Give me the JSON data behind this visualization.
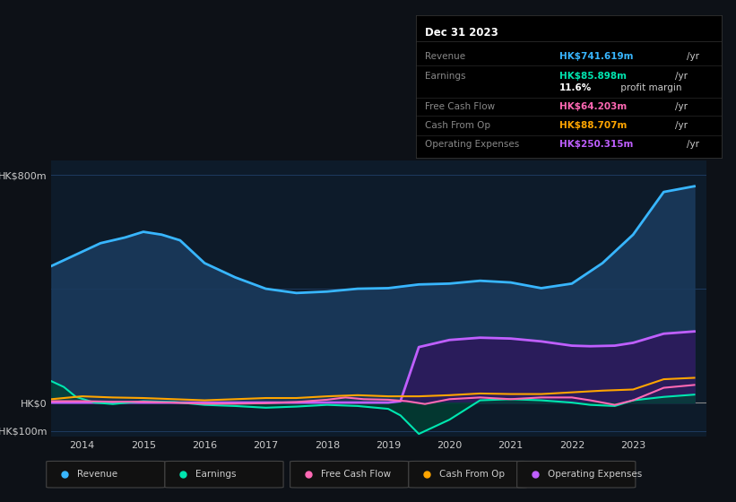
{
  "background_color": "#0d1117",
  "chart_bg": "#0d1b2a",
  "title_box": {
    "title": "Dec 31 2023",
    "rows": [
      {
        "label": "Revenue",
        "value": "HK$741.619m",
        "unit": "/yr",
        "color": "#38b6ff"
      },
      {
        "label": "Earnings",
        "value": "HK$85.898m",
        "unit": "/yr",
        "color": "#00e5b0"
      },
      {
        "label": "",
        "value": "11.6%",
        "unit": " profit margin",
        "color": "#ffffff"
      },
      {
        "label": "Free Cash Flow",
        "value": "HK$64.203m",
        "unit": "/yr",
        "color": "#ff69b4"
      },
      {
        "label": "Cash From Op",
        "value": "HK$88.707m",
        "unit": "/yr",
        "color": "#ffa500"
      },
      {
        "label": "Operating Expenses",
        "value": "HK$250.315m",
        "unit": "/yr",
        "color": "#bf5fff"
      }
    ]
  },
  "ylim": [
    -120,
    850
  ],
  "xlim": [
    2013.5,
    2024.2
  ],
  "xticks": [
    2014,
    2015,
    2016,
    2017,
    2018,
    2019,
    2020,
    2021,
    2022,
    2023
  ],
  "revenue": {
    "x": [
      2013.5,
      2013.8,
      2014.0,
      2014.3,
      2014.7,
      2015.0,
      2015.3,
      2015.6,
      2016.0,
      2016.5,
      2017.0,
      2017.5,
      2018.0,
      2018.5,
      2019.0,
      2019.5,
      2020.0,
      2020.5,
      2021.0,
      2021.5,
      2022.0,
      2022.5,
      2023.0,
      2023.5,
      2024.0
    ],
    "y": [
      480,
      510,
      530,
      560,
      580,
      600,
      590,
      570,
      490,
      440,
      400,
      385,
      390,
      400,
      402,
      415,
      418,
      428,
      422,
      402,
      418,
      490,
      590,
      740,
      760
    ],
    "color": "#38b6ff",
    "fill_color": "#1a3a5c",
    "linewidth": 2.0
  },
  "earnings": {
    "x": [
      2013.5,
      2013.7,
      2013.9,
      2014.2,
      2014.5,
      2015.0,
      2015.5,
      2016.0,
      2016.5,
      2017.0,
      2017.5,
      2018.0,
      2018.5,
      2018.8,
      2019.0,
      2019.2,
      2019.5,
      2020.0,
      2020.5,
      2021.0,
      2021.5,
      2022.0,
      2022.3,
      2022.7,
      2023.0,
      2023.5,
      2024.0
    ],
    "y": [
      75,
      55,
      20,
      0,
      -5,
      5,
      2,
      -8,
      -12,
      -18,
      -14,
      -8,
      -12,
      -18,
      -22,
      -45,
      -110,
      -60,
      8,
      12,
      8,
      0,
      -8,
      -12,
      8,
      20,
      28
    ],
    "color": "#00e5b0",
    "fill_color": "#004433",
    "linewidth": 1.5
  },
  "free_cash_flow": {
    "x": [
      2013.5,
      2014.0,
      2014.5,
      2015.0,
      2015.5,
      2016.0,
      2016.5,
      2017.0,
      2017.5,
      2018.0,
      2018.3,
      2018.6,
      2019.0,
      2019.3,
      2019.6,
      2020.0,
      2020.5,
      2021.0,
      2021.5,
      2022.0,
      2022.3,
      2022.7,
      2023.0,
      2023.5,
      2024.0
    ],
    "y": [
      5,
      5,
      3,
      3,
      0,
      -4,
      -4,
      -2,
      2,
      10,
      18,
      12,
      10,
      5,
      -5,
      12,
      18,
      12,
      18,
      18,
      8,
      -8,
      8,
      52,
      62
    ],
    "color": "#ff69b4",
    "linewidth": 1.5
  },
  "cash_from_op": {
    "x": [
      2013.5,
      2014.0,
      2014.5,
      2015.0,
      2015.5,
      2016.0,
      2016.5,
      2017.0,
      2017.5,
      2018.0,
      2018.5,
      2019.0,
      2019.5,
      2020.0,
      2020.5,
      2021.0,
      2021.5,
      2022.0,
      2022.5,
      2023.0,
      2023.5,
      2024.0
    ],
    "y": [
      12,
      22,
      18,
      16,
      12,
      8,
      12,
      16,
      16,
      22,
      26,
      22,
      22,
      26,
      32,
      30,
      30,
      36,
      42,
      46,
      82,
      87
    ],
    "color": "#ffa500",
    "linewidth": 1.5
  },
  "operating_expenses": {
    "x": [
      2013.5,
      2018.9,
      2019.0,
      2019.2,
      2019.5,
      2020.0,
      2020.5,
      2021.0,
      2021.5,
      2022.0,
      2022.3,
      2022.7,
      2023.0,
      2023.5,
      2024.0
    ],
    "y": [
      0,
      0,
      0,
      5,
      195,
      220,
      228,
      225,
      215,
      200,
      198,
      200,
      210,
      242,
      250
    ],
    "color": "#bf5fff",
    "fill_color": "#2d1a5c",
    "linewidth": 2.0
  },
  "legend": [
    {
      "label": "Revenue",
      "color": "#38b6ff"
    },
    {
      "label": "Earnings",
      "color": "#00e5b0"
    },
    {
      "label": "Free Cash Flow",
      "color": "#ff69b4"
    },
    {
      "label": "Cash From Op",
      "color": "#ffa500"
    },
    {
      "label": "Operating Expenses",
      "color": "#bf5fff"
    }
  ]
}
